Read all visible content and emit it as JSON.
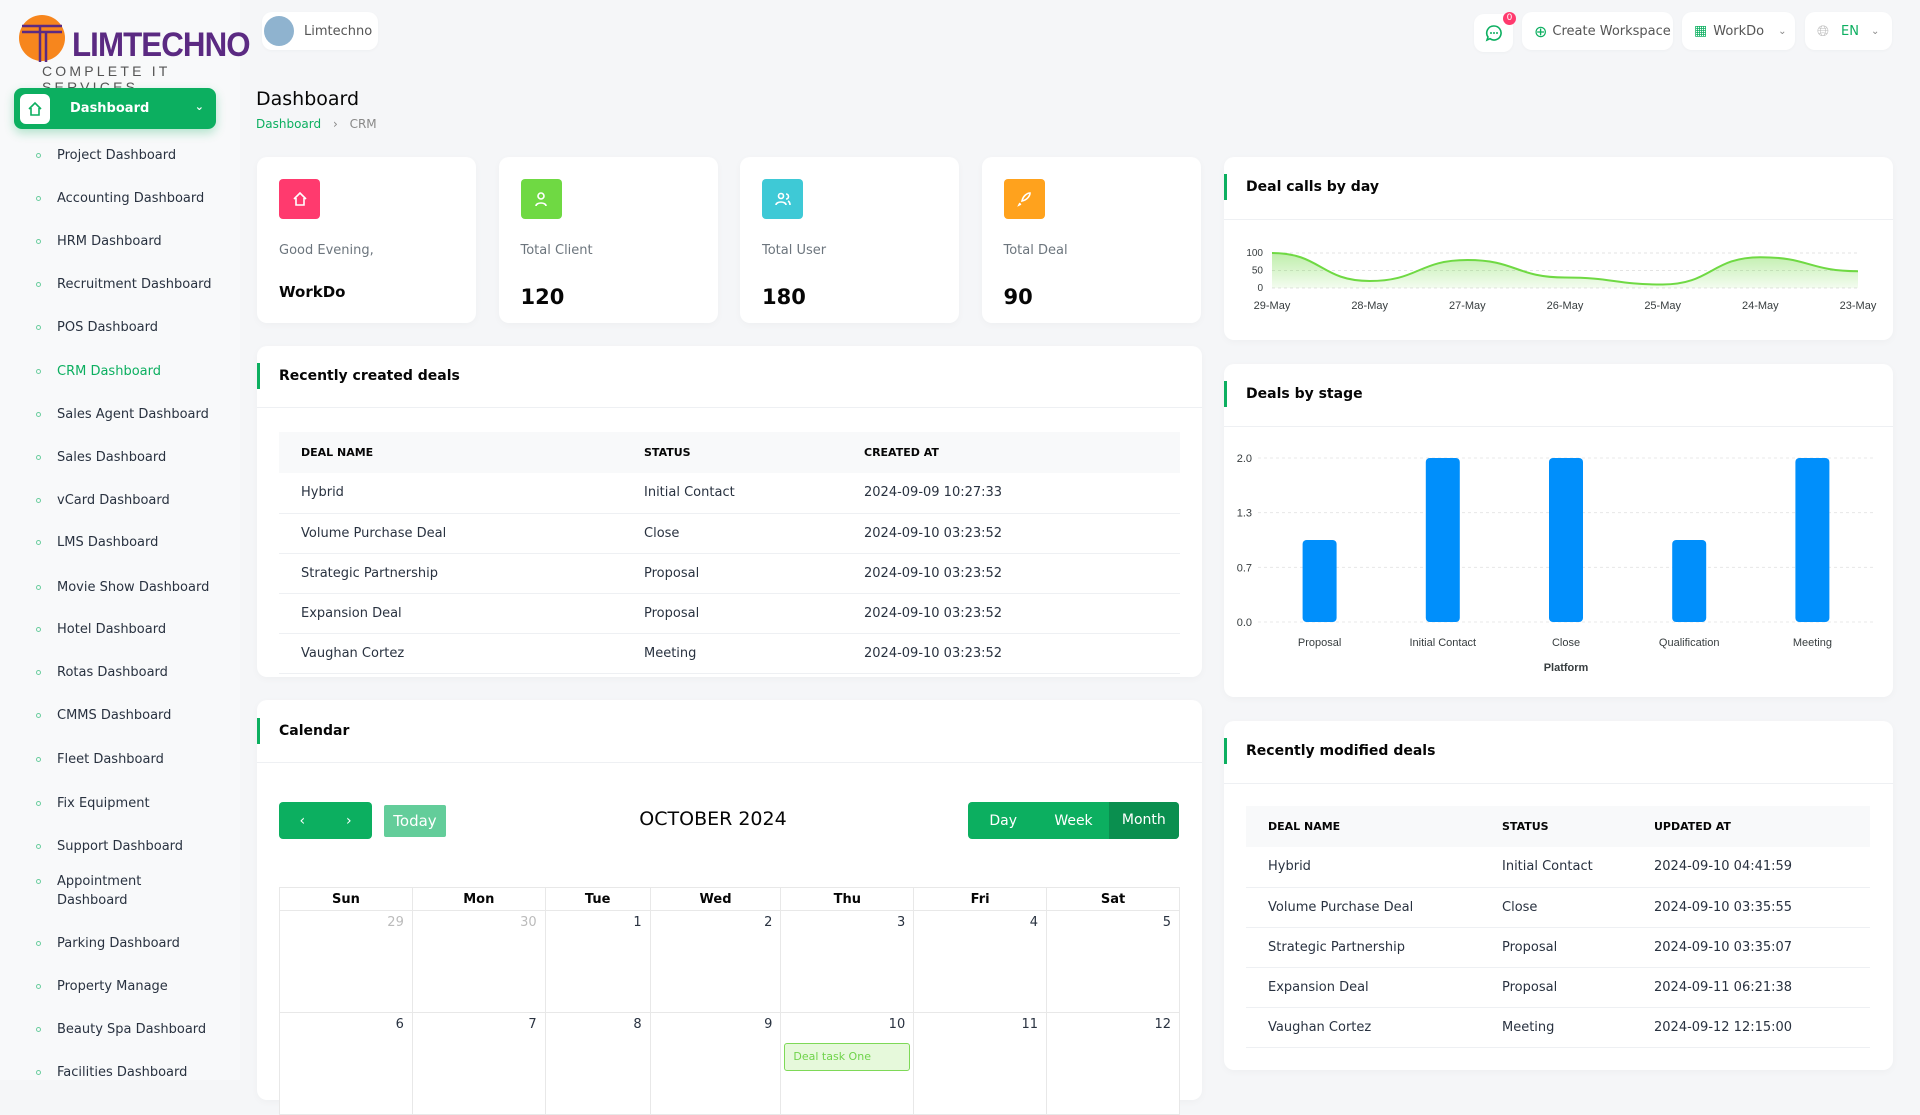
{
  "brand": {
    "logo_text": "LIMTECHNO",
    "logo_tagline": "COMPLETE IT SERVICES",
    "workspace_pill": "Limtechno"
  },
  "header": {
    "notification_count": "0",
    "create_workspace": "Create Workspace",
    "workspace_menu": "WorkDo",
    "language": "EN"
  },
  "sidebar": {
    "main": "Dashboard",
    "items": [
      {
        "label": "Project Dashboard"
      },
      {
        "label": "Accounting Dashboard"
      },
      {
        "label": "HRM Dashboard"
      },
      {
        "label": "Recruitment Dashboard"
      },
      {
        "label": "POS Dashboard"
      },
      {
        "label": "CRM Dashboard",
        "active": true
      },
      {
        "label": "Sales Agent Dashboard"
      },
      {
        "label": "Sales Dashboard"
      },
      {
        "label": "vCard Dashboard"
      },
      {
        "label": "LMS Dashboard"
      },
      {
        "label": "Movie Show Dashboard"
      },
      {
        "label": "Hotel Dashboard"
      },
      {
        "label": "Rotas Dashboard"
      },
      {
        "label": "CMMS Dashboard"
      },
      {
        "label": "Fleet Dashboard"
      },
      {
        "label": "Fix Equipment"
      },
      {
        "label": "Support Dashboard"
      },
      {
        "label": "Appointment Dashboard"
      },
      {
        "label": "Parking Dashboard"
      },
      {
        "label": "Property Manage"
      },
      {
        "label": "Beauty Spa Dashboard"
      },
      {
        "label": "Facilities Dashboard"
      }
    ]
  },
  "page": {
    "title": "Dashboard",
    "breadcrumb": [
      "Dashboard",
      "CRM"
    ]
  },
  "stats": [
    {
      "label": "Good Evening,",
      "value": "WorkDo",
      "color": "#ff3a6e",
      "icon": "home-icon"
    },
    {
      "label": "Total Client",
      "value": "120",
      "color": "#6fd943",
      "icon": "user-icon"
    },
    {
      "label": "Total User",
      "value": "180",
      "color": "#3ec9d6",
      "icon": "users-icon"
    },
    {
      "label": "Total Deal",
      "value": "90",
      "color": "#ffa21d",
      "icon": "rocket-icon"
    }
  ],
  "recent_created": {
    "title": "Recently created deals",
    "columns": [
      "DEAL NAME",
      "STATUS",
      "CREATED AT"
    ],
    "rows": [
      [
        "Hybrid",
        "Initial Contact",
        "2024-09-09 10:27:33"
      ],
      [
        "Volume Purchase Deal",
        "Close",
        "2024-09-10 03:23:52"
      ],
      [
        "Strategic Partnership",
        "Proposal",
        "2024-09-10 03:23:52"
      ],
      [
        "Expansion Deal",
        "Proposal",
        "2024-09-10 03:23:52"
      ],
      [
        "Vaughan Cortez",
        "Meeting",
        "2024-09-10 03:23:52"
      ]
    ]
  },
  "recent_modified": {
    "title": "Recently modified deals",
    "columns": [
      "DEAL NAME",
      "STATUS",
      "UPDATED AT"
    ],
    "rows": [
      [
        "Hybrid",
        "Initial Contact",
        "2024-09-10 04:41:59"
      ],
      [
        "Volume Purchase Deal",
        "Close",
        "2024-09-10 03:35:55"
      ],
      [
        "Strategic Partnership",
        "Proposal",
        "2024-09-10 03:35:07"
      ],
      [
        "Expansion Deal",
        "Proposal",
        "2024-09-11 06:21:38"
      ],
      [
        "Vaughan Cortez",
        "Meeting",
        "2024-09-12 12:15:00"
      ]
    ]
  },
  "calendar": {
    "title": "Calendar",
    "today": "Today",
    "month_title": "OCTOBER 2024",
    "views": [
      "Day",
      "Week",
      "Month"
    ],
    "active_view": "Month",
    "weekdays": [
      "Sun",
      "Mon",
      "Tue",
      "Wed",
      "Thu",
      "Fri",
      "Sat"
    ],
    "weeks": [
      [
        "29",
        "30",
        "1",
        "2",
        "3",
        "4",
        "5"
      ],
      [
        "6",
        "7",
        "8",
        "9",
        "10",
        "11",
        "12"
      ]
    ],
    "event": {
      "title": "Deal task One",
      "day": "10"
    }
  },
  "chart_data": [
    {
      "type": "area",
      "title": "Deal calls by day",
      "categories": [
        "29-May",
        "28-May",
        "27-May",
        "26-May",
        "25-May",
        "24-May",
        "23-May"
      ],
      "values": [
        100,
        20,
        80,
        30,
        10,
        88,
        48
      ],
      "yticks": [
        0,
        50,
        100
      ],
      "ylim": [
        0,
        100
      ],
      "color": "#6fd943"
    },
    {
      "type": "bar",
      "title": "Deals by stage",
      "categories": [
        "Proposal",
        "Initial Contact",
        "Close",
        "Qualification",
        "Meeting"
      ],
      "values": [
        1,
        2,
        2,
        1,
        2
      ],
      "yticks": [
        "0.0",
        "0.7",
        "1.3",
        "2.0"
      ],
      "ylim": [
        0,
        2
      ],
      "xlabel": "Platform",
      "color": "#008ffb"
    }
  ]
}
